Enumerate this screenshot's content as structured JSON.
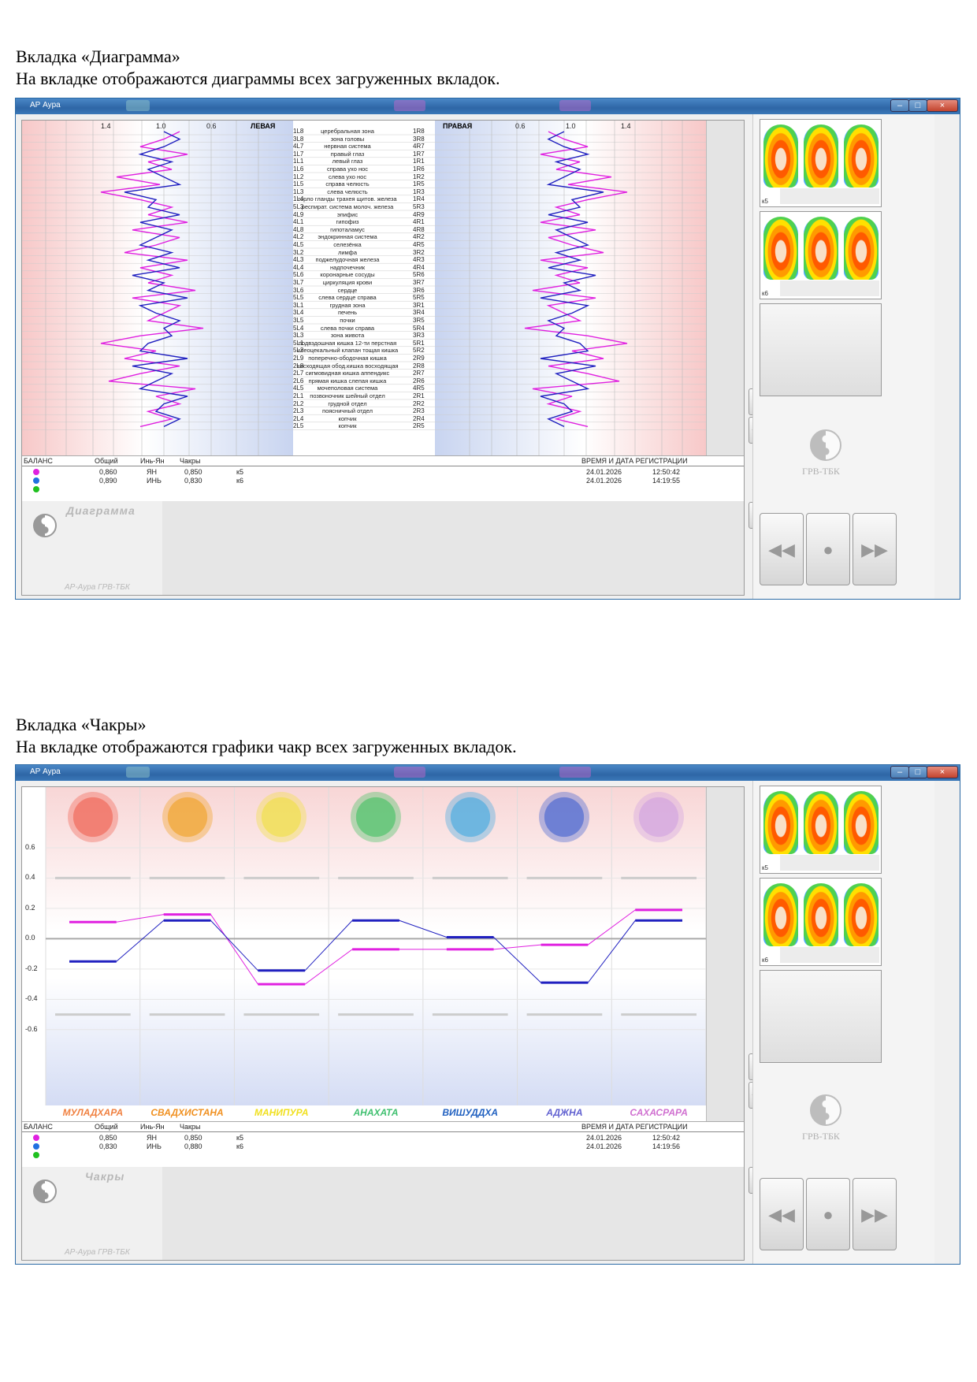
{
  "section1": {
    "heading": "Вкладка «Диаграмма»",
    "description": "На вкладке отображаются диаграммы всех загруженных вкладок."
  },
  "section2": {
    "heading": "Вкладка «Чакры»",
    "description": "На вкладке отображаются графики чакр всех загруженных вкладок."
  },
  "window": {
    "title": "АР Аура",
    "min": "–",
    "max": "□",
    "close": "×"
  },
  "diagram": {
    "left_label": "ЛЕВАЯ",
    "right_label": "ПРАВАЯ",
    "ticks_left": [
      "1.4",
      "1.0",
      "0.6"
    ],
    "ticks_right": [
      "0.6",
      "1.0",
      "1.4"
    ],
    "organs": [
      {
        "l": "1L8",
        "name": "церебральная зона",
        "r": "1R8"
      },
      {
        "l": "3L8",
        "name": "зона головы",
        "r": "3R8"
      },
      {
        "l": "4L7",
        "name": "нервная система",
        "r": "4R7"
      },
      {
        "l": "1L7",
        "name": "правый глаз",
        "r": "1R7"
      },
      {
        "l": "1L1",
        "name": "левый глаз",
        "r": "1R1"
      },
      {
        "l": "1L6",
        "name": "справа ухо нос",
        "r": "1R6"
      },
      {
        "l": "1L2",
        "name": "слева ухо нос",
        "r": "1R2"
      },
      {
        "l": "1L5",
        "name": "справа челюсть",
        "r": "1R5"
      },
      {
        "l": "1L3",
        "name": "слева челюсть",
        "r": "1R3"
      },
      {
        "l": "1L4",
        "name": "горло гланды трахея щитов. железа",
        "r": "1R4"
      },
      {
        "l": "5L3",
        "name": "респират. система молоч. железа",
        "r": "5R3"
      },
      {
        "l": "4L9",
        "name": "эпифис",
        "r": "4R9"
      },
      {
        "l": "4L1",
        "name": "гипофиз",
        "r": "4R1"
      },
      {
        "l": "4L8",
        "name": "гипоталамус",
        "r": "4R8"
      },
      {
        "l": "4L2",
        "name": "эндокринная система",
        "r": "4R2"
      },
      {
        "l": "4L5",
        "name": "селезёнка",
        "r": "4R5"
      },
      {
        "l": "3L2",
        "name": "лимфа",
        "r": "3R2"
      },
      {
        "l": "4L3",
        "name": "поджелудочная железа",
        "r": "4R3"
      },
      {
        "l": "4L4",
        "name": "надпочечник",
        "r": "4R4"
      },
      {
        "l": "5L6",
        "name": "коронарные сосуды",
        "r": "5R6"
      },
      {
        "l": "3L7",
        "name": "циркуляция крови",
        "r": "3R7"
      },
      {
        "l": "3L6",
        "name": "сердце",
        "r": "3R6"
      },
      {
        "l": "5L5",
        "name": "слева сердце справа",
        "r": "5R5"
      },
      {
        "l": "3L1",
        "name": "грудная зона",
        "r": "3R1"
      },
      {
        "l": "3L4",
        "name": "печень",
        "r": "3R4"
      },
      {
        "l": "3L5",
        "name": "почки",
        "r": "3R5"
      },
      {
        "l": "5L4",
        "name": "слева почки справа",
        "r": "5R4"
      },
      {
        "l": "3L3",
        "name": "зона живота",
        "r": "3R3"
      },
      {
        "l": "5L1",
        "name": "подвздошная кишка 12-ти перстная",
        "r": "5R1"
      },
      {
        "l": "5L2",
        "name": "илеоцекальный клапан тощая кишка",
        "r": "5R2"
      },
      {
        "l": "2L9",
        "name": "поперечно-ободочная кишка",
        "r": "2R9"
      },
      {
        "l": "2L8",
        "name": "нисходящая обод.кишка восходящая",
        "r": "2R8"
      },
      {
        "l": "2L7",
        "name": "сигмовидная кишка аппендикс",
        "r": "2R7"
      },
      {
        "l": "2L6",
        "name": "прямая кишка слепая кишка",
        "r": "2R6"
      },
      {
        "l": "4L5",
        "name": "мочеполовая система",
        "r": "4R5"
      },
      {
        "l": "2L1",
        "name": "позвоночник шейный отдел",
        "r": "2R1"
      },
      {
        "l": "2L2",
        "name": "грудной отдел",
        "r": "2R2"
      },
      {
        "l": "2L3",
        "name": "поясничный отдел",
        "r": "2R3"
      },
      {
        "l": "2L4",
        "name": "копчик",
        "r": "2R4"
      },
      {
        "l": "2L5",
        "name": "копчик",
        "r": "2R5"
      }
    ]
  },
  "info1": {
    "headers": {
      "balance": "БАЛАНС",
      "total": "Общий",
      "yinyang": "Инь-Ян",
      "chakras": "Чакры",
      "datetime": "ВРЕМЯ И ДАТА РЕГИСТРАЦИИ"
    },
    "rows": [
      {
        "total": "0,860",
        "yy": "ЯН",
        "ch": "0,850",
        "k": "к5",
        "date": "24.01.2026",
        "time": "12:50:42"
      },
      {
        "total": "0,890",
        "yy": "ИНЬ",
        "ch": "0,830",
        "k": "к6",
        "date": "24.01.2026",
        "time": "14:19:55"
      }
    ]
  },
  "info2": {
    "headers": {
      "balance": "БАЛАНС",
      "total": "Общий",
      "yinyang": "Инь-Ян",
      "chakras": "Чакры",
      "datetime": "ВРЕМЯ И ДАТА РЕГИСТРАЦИИ"
    },
    "rows": [
      {
        "total": "0,850",
        "yy": "ЯН",
        "ch": "0,850",
        "k": "к5",
        "date": "24.01.2026",
        "time": "12:50:42"
      },
      {
        "total": "0,830",
        "yy": "ИНЬ",
        "ch": "0,880",
        "k": "к6",
        "date": "24.01.2026",
        "time": "14:19:56"
      }
    ]
  },
  "panel1": {
    "watermark": "Диаграмма",
    "caption": "АР-Аура ГРВ-ТБК"
  },
  "panel2": {
    "watermark": "Чакры",
    "caption": "АР-Аура ГРВ-ТБК"
  },
  "sidebar": {
    "thumb1": "к5",
    "thumb2": "к6",
    "logo": "ГРВ-ТБК"
  },
  "colors": {
    "magenta": "#e020e0",
    "blue": "#2020c0",
    "green": "#20c020"
  },
  "chart_data": {
    "type": "line",
    "categories": [
      "МУЛАДХАРА",
      "СВАДХИСТАНА",
      "МАНИПУРА",
      "АНАХАТА",
      "ВИШУДДХА",
      "АДЖНА",
      "САХАСРАРА"
    ],
    "category_colors": [
      "#f08040",
      "#f09020",
      "#f0e020",
      "#40c070",
      "#2060c0",
      "#6060d0",
      "#d070d0"
    ],
    "chakra_colors": [
      "#f06050",
      "#f0a020",
      "#f0e040",
      "#40c060",
      "#40a8e0",
      "#4060d0",
      "#d0a0e0"
    ],
    "y_ticks": [
      "0.6",
      "0.4",
      "0.2",
      "0.0",
      "-0.2",
      "-0.4",
      "-0.6"
    ],
    "ylim": [
      -1.1,
      1.0
    ],
    "series": [
      {
        "values": [
          0.11,
          0.16,
          -0.3,
          -0.07,
          -0.07,
          -0.04,
          0.19
        ],
        "color": "#e020e0"
      },
      {
        "values": [
          -0.15,
          0.12,
          -0.21,
          0.12,
          0.01,
          -0.29,
          0.12
        ],
        "color": "#2020c0"
      }
    ]
  }
}
